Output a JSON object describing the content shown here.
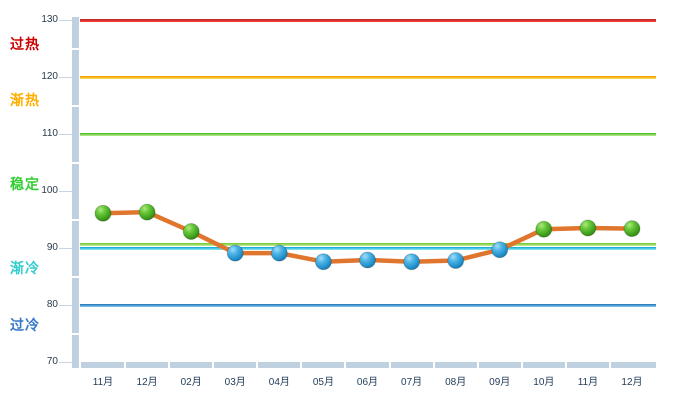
{
  "chart_data": {
    "type": "line",
    "title": "",
    "xlabel": "",
    "ylabel": "",
    "ylim": [
      70,
      130
    ],
    "yticks": [
      130,
      120,
      110,
      100,
      90,
      80,
      70
    ],
    "grid": "off",
    "legend": "none",
    "categories": [
      "11月",
      "12月",
      "02月",
      "03月",
      "04月",
      "05月",
      "06月",
      "07月",
      "08月",
      "09月",
      "10月",
      "11月",
      "12月"
    ],
    "values": [
      96.1,
      96.3,
      92.9,
      89.1,
      89.1,
      87.6,
      87.9,
      87.6,
      87.8,
      89.7,
      93.3,
      93.5,
      93.4
    ],
    "series_line_color": "#E0762D",
    "marker_rule": {
      "threshold": 90,
      "at_or_above_color": "#4CAF22",
      "below_color": "#2D9AD4"
    },
    "zones": [
      {
        "key": "overheat",
        "label": "过热",
        "color": "#CC0000",
        "label_value": 125.8
      },
      {
        "key": "warming",
        "label": "渐热",
        "color": "#FFAE00",
        "label_value": 115.9
      },
      {
        "key": "stable",
        "label": "稳定",
        "color": "#33CC33",
        "label_value": 101.3
      },
      {
        "key": "cooling",
        "label": "渐冷",
        "color": "#33CCCC",
        "label_value": 86.5
      },
      {
        "key": "overcold",
        "label": "过冷",
        "color": "#3377CC",
        "label_value": 76.5
      }
    ],
    "thresholds": [
      {
        "key": "overheat-boundary",
        "value": 130,
        "color_top": "#C62828",
        "color_bottom": "#EF3B36"
      },
      {
        "key": "warming-boundary",
        "value": 120,
        "color_top": "#F2A200",
        "color_bottom": "#FFD44F"
      },
      {
        "key": "stable-upper-boundary",
        "value": 110,
        "color_top": "#55C02C",
        "color_bottom": "#A9E57F"
      },
      {
        "key": "stable-lower-boundary",
        "value": 90.6,
        "color_top": "#7CCB3F",
        "color_bottom": "#B6EA88"
      },
      {
        "key": "cooling-upper-boundary",
        "value": 90,
        "color_top": "#1FB2D8",
        "color_bottom": "#7ADCEF"
      },
      {
        "key": "overcold-boundary",
        "value": 80,
        "color_top": "#2E80C0",
        "color_bottom": "#77B7E3"
      }
    ],
    "axis": {
      "band_color": "#BFD0E0",
      "tick_color": "#C6D5E3",
      "tick_label_color": "#2B3A4A",
      "x_label_color": "#1F3B57"
    }
  }
}
